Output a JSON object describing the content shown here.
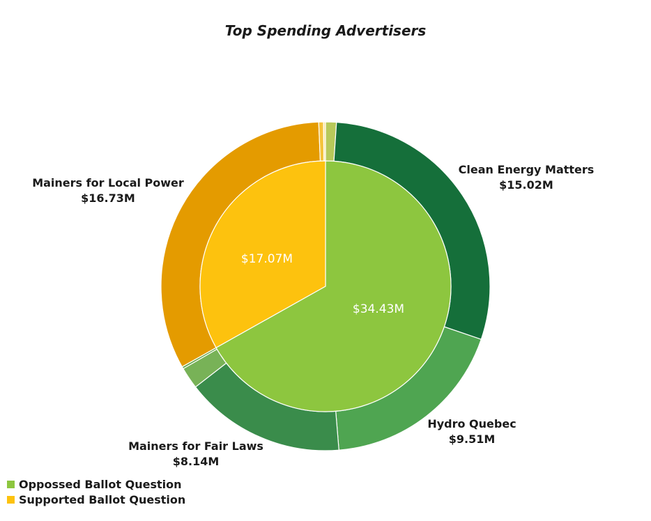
{
  "chart_data": {
    "type": "pie",
    "title": "Top Spending Advertisers",
    "inner_ring": [
      {
        "name": "Oppossed Ballot Question",
        "label": "$34.43M",
        "value": 34.43,
        "color": "#8dc63f"
      },
      {
        "name": "Supported Ballot Question",
        "label": "$17.07M",
        "value": 17.07,
        "color": "#fdc20e"
      }
    ],
    "outer_ring": [
      {
        "name": "",
        "value": 0.55,
        "color": "#b8c95a",
        "label_name": "",
        "label_value": ""
      },
      {
        "name": "Clean Energy Matters",
        "value": 15.02,
        "color": "#156f3a",
        "label_name": "Clean Energy Matters",
        "label_value": "$15.02M"
      },
      {
        "name": "Hydro Quebec",
        "value": 9.51,
        "color": "#4fa551",
        "label_name": "Hydro Quebec",
        "label_value": "$9.51M"
      },
      {
        "name": "Mainers for Fair Laws",
        "value": 8.14,
        "color": "#3a8c4b",
        "label_name": "Mainers for Fair Laws",
        "label_value": "$8.14M"
      },
      {
        "name": "",
        "value": 1.1,
        "color": "#78b257",
        "label_name": "",
        "label_value": ""
      },
      {
        "name": "",
        "value": 0.11,
        "color": "#6aa84f",
        "label_name": "",
        "label_value": ""
      },
      {
        "name": "Mainers for Local Power",
        "value": 16.73,
        "color": "#e49b00",
        "label_name": "Mainers for Local Power",
        "label_value": "$16.73M"
      },
      {
        "name": "",
        "value": 0.24,
        "color": "#f5c33b",
        "label_name": "",
        "label_value": ""
      },
      {
        "name": "",
        "value": 0.1,
        "color": "#fde59a",
        "label_name": "",
        "label_value": ""
      }
    ],
    "legend": [
      {
        "label": "Oppossed Ballot Question",
        "color": "#8dc63f"
      },
      {
        "label": "Supported Ballot Question",
        "color": "#fdc20e"
      }
    ]
  }
}
